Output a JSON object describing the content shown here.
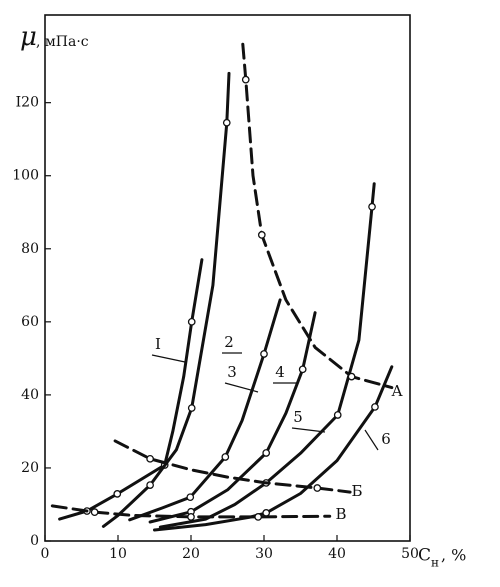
{
  "chart_data": {
    "type": "line",
    "y_label": {
      "symbol": "μ",
      "unit": ", мПа·с"
    },
    "x_label": {
      "symbol": "С",
      "subscript": "н",
      "unit": ", %"
    },
    "xlim": [
      0,
      50
    ],
    "ylim": [
      0,
      144
    ],
    "xticks": [
      0,
      10,
      20,
      30,
      40,
      50
    ],
    "yticks": [
      0,
      20,
      40,
      60,
      80,
      100,
      {
        "value": 120,
        "label": "I20"
      }
    ],
    "grid": false,
    "series": [
      {
        "name": "I",
        "color": "#111111",
        "dashed": false,
        "markers": [
          1,
          2,
          3,
          6
        ],
        "x": [
          2,
          5.75,
          9.9,
          16.4,
          17.5,
          19,
          20.1,
          21.5
        ],
        "values": [
          6,
          8.2,
          12.9,
          20.8,
          30,
          45,
          60,
          77
        ]
      },
      {
        "name": "2",
        "color": "#111111",
        "dashed": false,
        "markers": [
          2,
          4,
          6
        ],
        "x": [
          8,
          10,
          14.4,
          18,
          20.1,
          23,
          24.9,
          25.2
        ],
        "values": [
          4,
          7,
          15.3,
          25,
          36.4,
          70,
          114.5,
          128
        ]
      },
      {
        "name": "3",
        "color": "#111111",
        "dashed": false,
        "markers": [
          2,
          3,
          5
        ],
        "x": [
          11.6,
          16,
          19.9,
          24.7,
          27,
          30,
          32.2
        ],
        "values": [
          5.8,
          9,
          12,
          23,
          33,
          51.2,
          66
        ]
      },
      {
        "name": "4",
        "color": "#111111",
        "dashed": false,
        "markers": [
          1,
          3,
          5
        ],
        "x": [
          14.4,
          20,
          25,
          30.3,
          33,
          35.3,
          37
        ],
        "values": [
          5.2,
          8,
          14,
          24.1,
          35,
          47,
          62.5
        ]
      },
      {
        "name": "5",
        "color": "#111111",
        "dashed": false,
        "markers": [
          3,
          5,
          7
        ],
        "x": [
          15.8,
          22,
          26,
          30.3,
          35,
          40.1,
          43,
          44.8,
          45.1
        ],
        "values": [
          3.8,
          6,
          10,
          15.9,
          24,
          34.5,
          55,
          91.5,
          97.8
        ]
      },
      {
        "name": "6",
        "color": "#111111",
        "dashed": false,
        "markers": [
          3,
          6
        ],
        "x": [
          15,
          22,
          28,
          30.3,
          35,
          40,
          45.2,
          47.5
        ],
        "values": [
          3,
          4.5,
          6.5,
          7.7,
          13,
          22,
          36.7,
          47.7
        ]
      },
      {
        "name": "А",
        "color": "#111111",
        "dashed": true,
        "markers": [
          1,
          3,
          6
        ],
        "x": [
          27.1,
          27.5,
          28.5,
          29.7,
          33,
          37,
          42,
          47.5
        ],
        "values": [
          136,
          126.3,
          100,
          83.8,
          66,
          53,
          45,
          42
        ]
      },
      {
        "name": "Б",
        "color": "#111111",
        "dashed": true,
        "markers": [
          1,
          5
        ],
        "x": [
          9.6,
          14.4,
          20,
          25,
          30,
          37.3,
          41.8
        ],
        "values": [
          27.4,
          22.5,
          19.5,
          17.5,
          16,
          14.5,
          13.4
        ]
      },
      {
        "name": "В",
        "color": "#111111",
        "dashed": true,
        "markers": [
          1,
          3,
          4
        ],
        "x": [
          1,
          6.8,
          12,
          20,
          29.2,
          39
        ],
        "values": [
          9.6,
          7.9,
          7,
          6.6,
          6.6,
          6.8
        ]
      }
    ]
  }
}
